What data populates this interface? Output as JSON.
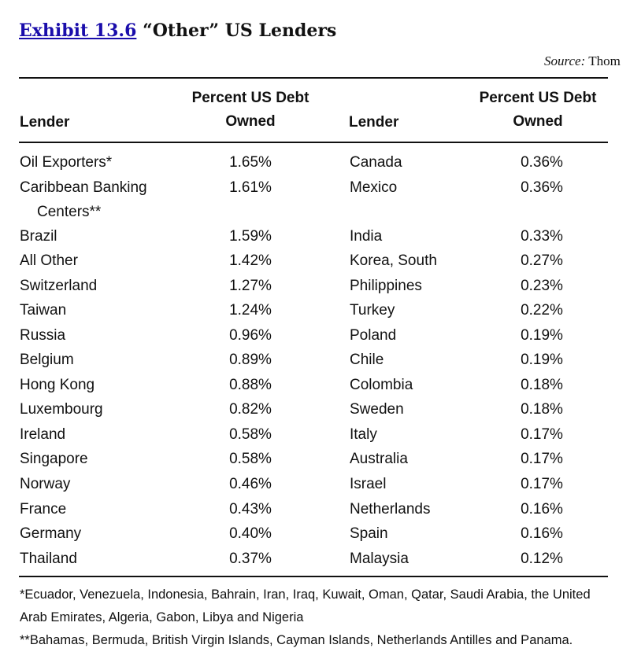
{
  "exhibit": {
    "link_text": "Exhibit 13.6",
    "title": "“Other” US Lenders"
  },
  "source": {
    "label": "Source:",
    "text": "Thom"
  },
  "table": {
    "headers": {
      "lender_left": "Lender",
      "pct_left_line1": "Percent US Debt",
      "pct_left_line2": "Owned",
      "lender_right": "Lender",
      "pct_right_line1": "Percent US Debt",
      "pct_right_line2": "Owned"
    },
    "rows": [
      {
        "left_lender": "Oil Exporters*",
        "left_pct": "1.65%",
        "right_lender": "Canada",
        "right_pct": "0.36%"
      },
      {
        "left_lender": "Caribbean Banking",
        "left_lender_cont": "Centers**",
        "left_pct": "1.61%",
        "right_lender": "Mexico",
        "right_pct": "0.36%"
      },
      {
        "left_lender": "Brazil",
        "left_pct": "1.59%",
        "right_lender": "India",
        "right_pct": "0.33%"
      },
      {
        "left_lender": "All Other",
        "left_pct": "1.42%",
        "right_lender": "Korea, South",
        "right_pct": "0.27%"
      },
      {
        "left_lender": "Switzerland",
        "left_pct": "1.27%",
        "right_lender": "Philippines",
        "right_pct": "0.23%"
      },
      {
        "left_lender": "Taiwan",
        "left_pct": "1.24%",
        "right_lender": "Turkey",
        "right_pct": "0.22%"
      },
      {
        "left_lender": "Russia",
        "left_pct": "0.96%",
        "right_lender": "Poland",
        "right_pct": "0.19%"
      },
      {
        "left_lender": "Belgium",
        "left_pct": "0.89%",
        "right_lender": "Chile",
        "right_pct": "0.19%"
      },
      {
        "left_lender": "Hong Kong",
        "left_pct": "0.88%",
        "right_lender": "Colombia",
        "right_pct": "0.18%"
      },
      {
        "left_lender": "Luxembourg",
        "left_pct": "0.82%",
        "right_lender": "Sweden",
        "right_pct": "0.18%"
      },
      {
        "left_lender": "Ireland",
        "left_pct": "0.58%",
        "right_lender": "Italy",
        "right_pct": "0.17%"
      },
      {
        "left_lender": "Singapore",
        "left_pct": "0.58%",
        "right_lender": "Australia",
        "right_pct": "0.17%"
      },
      {
        "left_lender": "Norway",
        "left_pct": "0.46%",
        "right_lender": "Israel",
        "right_pct": "0.17%"
      },
      {
        "left_lender": "France",
        "left_pct": "0.43%",
        "right_lender": "Netherlands",
        "right_pct": "0.16%"
      },
      {
        "left_lender": "Germany",
        "left_pct": "0.40%",
        "right_lender": "Spain",
        "right_pct": "0.16%"
      },
      {
        "left_lender": "Thailand",
        "left_pct": "0.37%",
        "right_lender": "Malaysia",
        "right_pct": "0.12%"
      }
    ]
  },
  "footnotes": {
    "note1": "*Ecuador, Venezuela, Indonesia, Bahrain, Iran, Iraq, Kuwait, Oman, Qatar, Saudi Arabia, the United Arab Emirates, Algeria, Gabon, Libya and Nigeria",
    "note2": "**Bahamas, Bermuda, British Virgin Islands, Cayman Islands, Netherlands Antilles and Panama."
  },
  "colors": {
    "link": "#1a0dab",
    "text": "#111111",
    "rule": "#111111"
  }
}
